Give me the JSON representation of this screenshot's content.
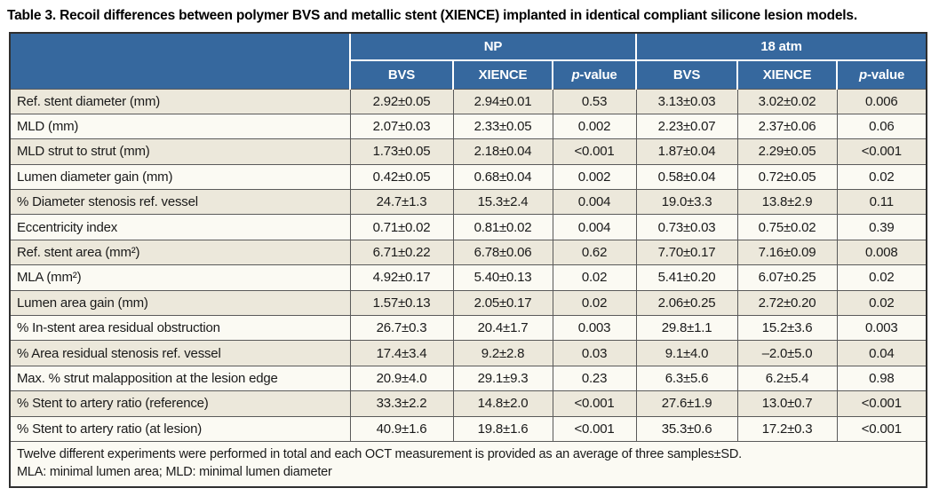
{
  "page": {
    "title": "Table 3. Recoil differences between polymer BVS and metallic stent (XIENCE) implanted in identical compliant silicone lesion models."
  },
  "colors": {
    "header_bg": "#36689E",
    "header_text": "#FFFFFF",
    "row_odd_bg": "#ECE8DB",
    "row_even_bg": "#FBFAF3",
    "grid_line": "#5A5A5A",
    "outer_border": "#2F2F2F",
    "title_text": "#000000"
  },
  "table": {
    "column_groups": [
      {
        "label": "NP"
      },
      {
        "label": "18 atm"
      }
    ],
    "sub_header": {
      "bvs": "BVS",
      "xience": "XIENCE",
      "p_prefix": "p",
      "p_suffix": "-value"
    },
    "rows": [
      {
        "label": "Ref. stent diameter (mm)",
        "np_bvs": "2.92±0.05",
        "np_xience": "2.94±0.01",
        "np_p": "0.53",
        "atm_bvs": "3.13±0.03",
        "atm_xience": "3.02±0.02",
        "atm_p": "0.006"
      },
      {
        "label": "MLD (mm)",
        "np_bvs": "2.07±0.03",
        "np_xience": "2.33±0.05",
        "np_p": "0.002",
        "atm_bvs": "2.23±0.07",
        "atm_xience": "2.37±0.06",
        "atm_p": "0.06"
      },
      {
        "label": "MLD strut to strut (mm)",
        "np_bvs": "1.73±0.05",
        "np_xience": "2.18±0.04",
        "np_p": "<0.001",
        "atm_bvs": "1.87±0.04",
        "atm_xience": "2.29±0.05",
        "atm_p": "<0.001"
      },
      {
        "label": "Lumen diameter gain (mm)",
        "np_bvs": "0.42±0.05",
        "np_xience": "0.68±0.04",
        "np_p": "0.002",
        "atm_bvs": "0.58±0.04",
        "atm_xience": "0.72±0.05",
        "atm_p": "0.02"
      },
      {
        "label": "% Diameter stenosis ref. vessel",
        "np_bvs": "24.7±1.3",
        "np_xience": "15.3±2.4",
        "np_p": "0.004",
        "atm_bvs": "19.0±3.3",
        "atm_xience": "13.8±2.9",
        "atm_p": "0.11"
      },
      {
        "label": "Eccentricity index",
        "np_bvs": "0.71±0.02",
        "np_xience": "0.81±0.02",
        "np_p": "0.004",
        "atm_bvs": "0.73±0.03",
        "atm_xience": "0.75±0.02",
        "atm_p": "0.39"
      },
      {
        "label": "Ref. stent area (mm²)",
        "np_bvs": "6.71±0.22",
        "np_xience": "6.78±0.06",
        "np_p": "0.62",
        "atm_bvs": "7.70±0.17",
        "atm_xience": "7.16±0.09",
        "atm_p": "0.008"
      },
      {
        "label": "MLA (mm²)",
        "np_bvs": "4.92±0.17",
        "np_xience": "5.40±0.13",
        "np_p": "0.02",
        "atm_bvs": "5.41±0.20",
        "atm_xience": "6.07±0.25",
        "atm_p": "0.02"
      },
      {
        "label": "Lumen area gain (mm)",
        "np_bvs": "1.57±0.13",
        "np_xience": "2.05±0.17",
        "np_p": "0.02",
        "atm_bvs": "2.06±0.25",
        "atm_xience": "2.72±0.20",
        "atm_p": "0.02"
      },
      {
        "label": "% In-stent area residual obstruction",
        "np_bvs": "26.7±0.3",
        "np_xience": "20.4±1.7",
        "np_p": "0.003",
        "atm_bvs": "29.8±1.1",
        "atm_xience": "15.2±3.6",
        "atm_p": "0.003"
      },
      {
        "label": "% Area residual stenosis ref. vessel",
        "np_bvs": "17.4±3.4",
        "np_xience": "9.2±2.8",
        "np_p": "0.03",
        "atm_bvs": "9.1±4.0",
        "atm_xience": "–2.0±5.0",
        "atm_p": "0.04"
      },
      {
        "label": "Max. % strut malapposition at the lesion edge",
        "np_bvs": "20.9±4.0",
        "np_xience": "29.1±9.3",
        "np_p": "0.23",
        "atm_bvs": "6.3±5.6",
        "atm_xience": "6.2±5.4",
        "atm_p": "0.98"
      },
      {
        "label": "% Stent to artery ratio (reference)",
        "np_bvs": "33.3±2.2",
        "np_xience": "14.8±2.0",
        "np_p": "<0.001",
        "atm_bvs": "27.6±1.9",
        "atm_xience": "13.0±0.7",
        "atm_p": "<0.001"
      },
      {
        "label": "% Stent to artery ratio (at lesion)",
        "np_bvs": "40.9±1.6",
        "np_xience": "19.8±1.6",
        "np_p": "<0.001",
        "atm_bvs": "35.3±0.6",
        "atm_xience": "17.2±0.3",
        "atm_p": "<0.001"
      }
    ],
    "footnotes": [
      "Twelve different experiments were performed in total and each OCT measurement is provided as an average of three samples±SD.",
      "MLA: minimal lumen area; MLD: minimal lumen diameter"
    ]
  }
}
